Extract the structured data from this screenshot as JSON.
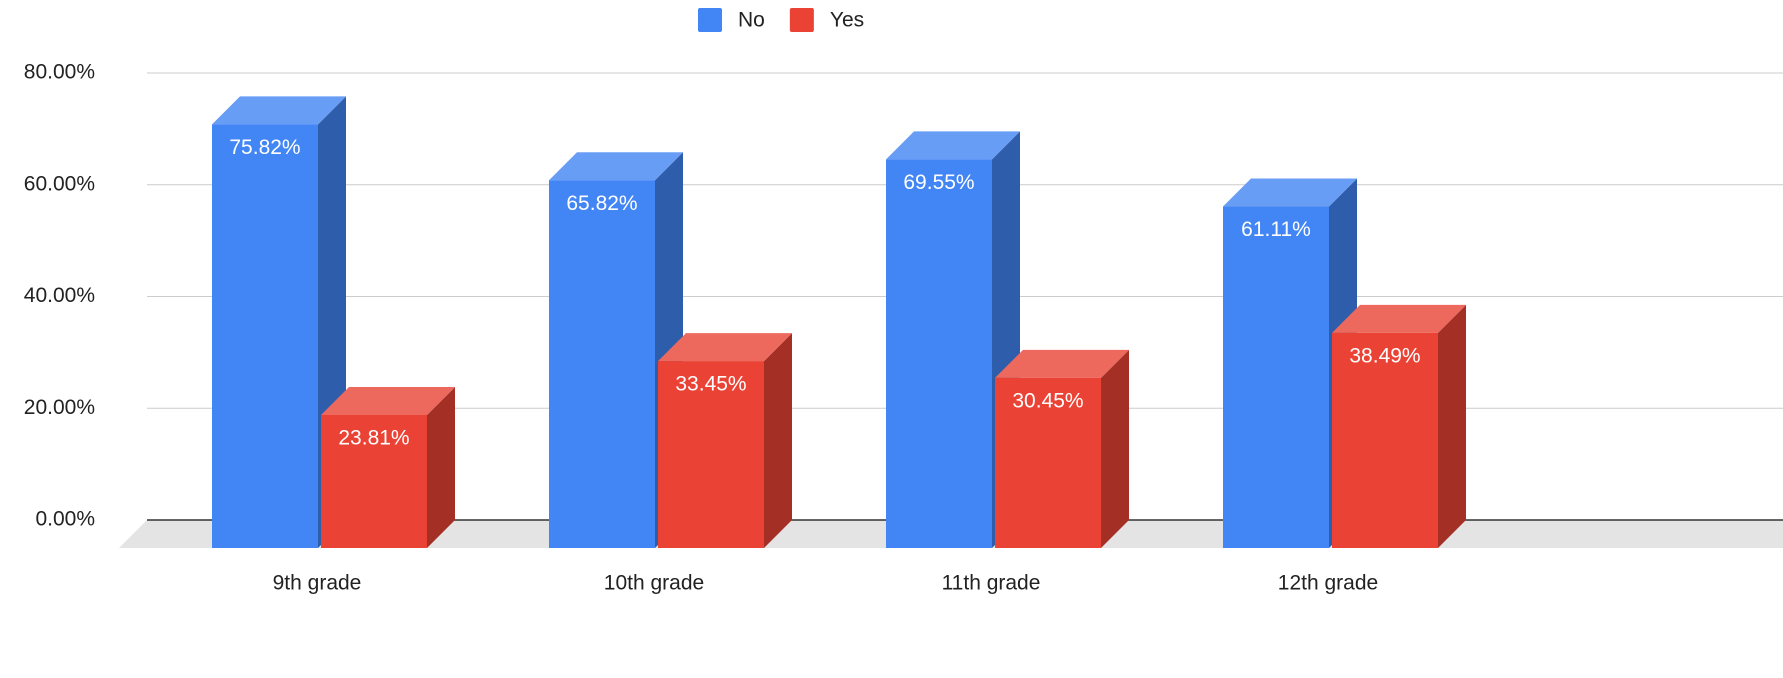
{
  "chart_data": {
    "type": "bar3d",
    "categories": [
      "9th grade",
      "10th grade",
      "11th grade",
      "12th grade"
    ],
    "series": [
      {
        "name": "No",
        "color": "#4285f4",
        "values": [
          75.82,
          65.82,
          69.55,
          61.11
        ],
        "value_labels": [
          "75.82%",
          "65.82%",
          "69.55%",
          "61.11%"
        ]
      },
      {
        "name": "Yes",
        "color": "#ea4335",
        "values": [
          23.81,
          33.45,
          30.45,
          38.49
        ],
        "value_labels": [
          "23.81%",
          "33.45%",
          "30.45%",
          "38.49%"
        ]
      }
    ],
    "ylim": [
      0,
      80
    ],
    "yticks": [
      {
        "value": 0,
        "label": "0.00%"
      },
      {
        "value": 20,
        "label": "20.00%"
      },
      {
        "value": 40,
        "label": "40.00%"
      },
      {
        "value": 60,
        "label": "60.00%"
      },
      {
        "value": 80,
        "label": "80.00%"
      }
    ],
    "grid": true,
    "legend": "top"
  }
}
